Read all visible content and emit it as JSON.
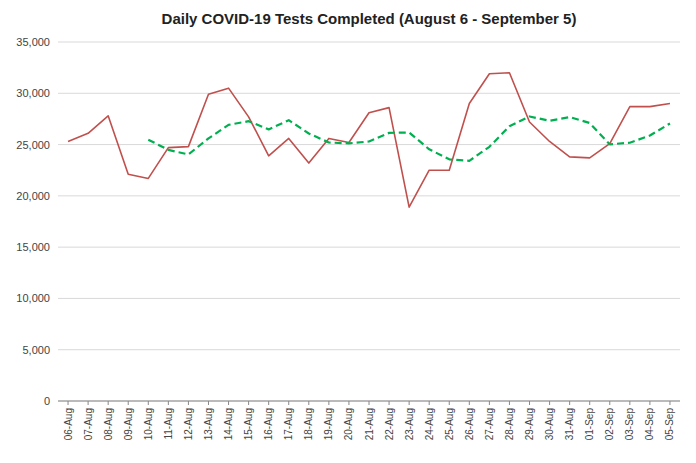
{
  "chart_data": {
    "type": "line",
    "title": "Daily COVID-19 Tests Completed (August 6 - September 5)",
    "categories": [
      "06-Aug",
      "07-Aug",
      "08-Aug",
      "09-Aug",
      "10-Aug",
      "11-Aug",
      "12-Aug",
      "13-Aug",
      "14-Aug",
      "15-Aug",
      "16-Aug",
      "17-Aug",
      "18-Aug",
      "19-Aug",
      "20-Aug",
      "21-Aug",
      "22-Aug",
      "23-Aug",
      "24-Aug",
      "25-Aug",
      "26-Aug",
      "27-Aug",
      "28-Aug",
      "29-Aug",
      "30-Aug",
      "31-Aug",
      "01-Sep",
      "02-Sep",
      "03-Sep",
      "04-Sep",
      "05-Sep"
    ],
    "series": [
      {
        "color": "#c0504d",
        "line_style": "solid",
        "values": [
          25300,
          26100,
          27800,
          22100,
          21700,
          24700,
          24800,
          29900,
          30500,
          27700,
          23900,
          25600,
          23200,
          25600,
          25200,
          28100,
          28600,
          18900,
          22500,
          22500,
          29000,
          31900,
          32000,
          27200,
          25300,
          23800,
          23700,
          25100,
          28700,
          28700,
          29000
        ]
      },
      {
        "color": "#00b050",
        "line_style": "dashed",
        "values": [
          null,
          null,
          null,
          null,
          25480,
          24480,
          24040,
          25600,
          26920,
          27280,
          26480,
          27380,
          26080,
          25200,
          25120,
          25300,
          26140,
          26180,
          24540,
          23560,
          23420,
          24780,
          26780,
          27740,
          27320,
          27680,
          27100,
          25020,
          25180,
          25880,
          27060
        ]
      }
    ],
    "ylim": [
      0,
      35000
    ],
    "yticks": [
      0,
      {
        "value": 5000,
        "label": "5,000"
      },
      {
        "value": 10000,
        "label": "10,000"
      },
      {
        "value": 15000,
        "label": "15,000"
      },
      {
        "value": 20000,
        "label": "20,000"
      },
      {
        "value": 25000,
        "label": "25,000"
      },
      {
        "value": 30000,
        "label": "30,000"
      },
      {
        "value": 35000,
        "label": "35,000"
      }
    ],
    "grid": true
  }
}
